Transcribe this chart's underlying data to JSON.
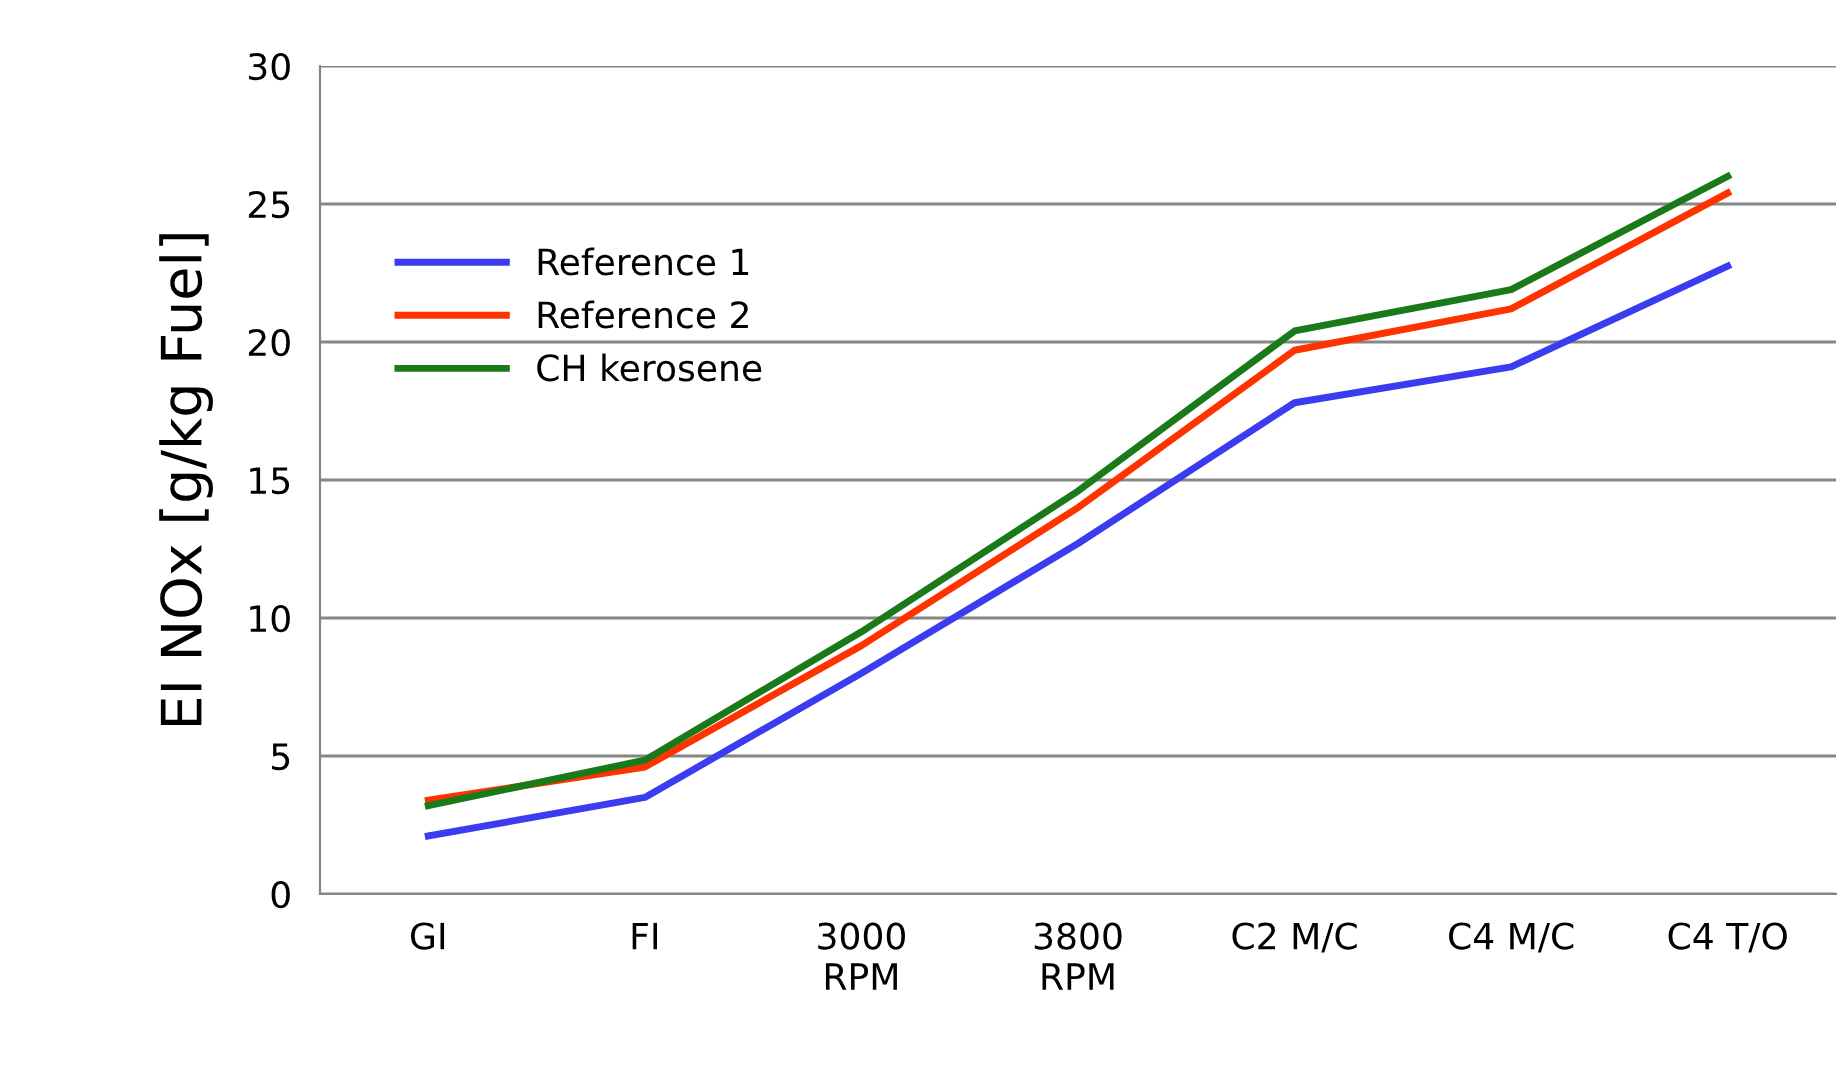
{
  "chart_data": {
    "type": "line",
    "ylabel": "EI NOx [g/kg Fuel]",
    "categories": [
      "GI",
      "FI",
      "3000\nRPM",
      "3800\nRPM",
      "C2 M/C",
      "C4 M/C",
      "C4 T/O"
    ],
    "series": [
      {
        "name": "Reference 1",
        "color": "#3b3bf0",
        "values": [
          2.1,
          3.5,
          8.0,
          12.7,
          17.8,
          19.1,
          22.75
        ]
      },
      {
        "name": "Reference 2",
        "color": "#ff3300",
        "values": [
          3.4,
          4.6,
          9.0,
          14.0,
          19.7,
          21.2,
          25.4
        ]
      },
      {
        "name": "CH kerosene",
        "color": "#1a7a1a",
        "values": [
          3.2,
          4.85,
          9.5,
          14.6,
          20.4,
          21.9,
          26.0
        ]
      }
    ],
    "ylim": [
      0,
      30
    ],
    "yticks": [
      0,
      5,
      10,
      15,
      20,
      25,
      30
    ],
    "grid": "y",
    "legend": "top left"
  }
}
